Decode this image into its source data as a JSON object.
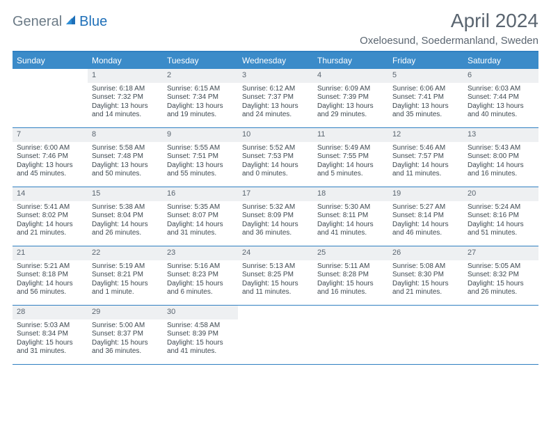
{
  "brand": {
    "part1": "General",
    "part2": "Blue"
  },
  "title": "April 2024",
  "location": "Oxeloesund, Soedermanland, Sweden",
  "colors": {
    "header_bg": "#3b8bc9",
    "border": "#2f7fc1",
    "daynum_bg": "#eef0f2",
    "text": "#5a6570"
  },
  "days_of_week": [
    "Sunday",
    "Monday",
    "Tuesday",
    "Wednesday",
    "Thursday",
    "Friday",
    "Saturday"
  ],
  "weeks": [
    [
      {
        "n": "",
        "sr": "",
        "ss": "",
        "dl": ""
      },
      {
        "n": "1",
        "sr": "Sunrise: 6:18 AM",
        "ss": "Sunset: 7:32 PM",
        "dl": "Daylight: 13 hours and 14 minutes."
      },
      {
        "n": "2",
        "sr": "Sunrise: 6:15 AM",
        "ss": "Sunset: 7:34 PM",
        "dl": "Daylight: 13 hours and 19 minutes."
      },
      {
        "n": "3",
        "sr": "Sunrise: 6:12 AM",
        "ss": "Sunset: 7:37 PM",
        "dl": "Daylight: 13 hours and 24 minutes."
      },
      {
        "n": "4",
        "sr": "Sunrise: 6:09 AM",
        "ss": "Sunset: 7:39 PM",
        "dl": "Daylight: 13 hours and 29 minutes."
      },
      {
        "n": "5",
        "sr": "Sunrise: 6:06 AM",
        "ss": "Sunset: 7:41 PM",
        "dl": "Daylight: 13 hours and 35 minutes."
      },
      {
        "n": "6",
        "sr": "Sunrise: 6:03 AM",
        "ss": "Sunset: 7:44 PM",
        "dl": "Daylight: 13 hours and 40 minutes."
      }
    ],
    [
      {
        "n": "7",
        "sr": "Sunrise: 6:00 AM",
        "ss": "Sunset: 7:46 PM",
        "dl": "Daylight: 13 hours and 45 minutes."
      },
      {
        "n": "8",
        "sr": "Sunrise: 5:58 AM",
        "ss": "Sunset: 7:48 PM",
        "dl": "Daylight: 13 hours and 50 minutes."
      },
      {
        "n": "9",
        "sr": "Sunrise: 5:55 AM",
        "ss": "Sunset: 7:51 PM",
        "dl": "Daylight: 13 hours and 55 minutes."
      },
      {
        "n": "10",
        "sr": "Sunrise: 5:52 AM",
        "ss": "Sunset: 7:53 PM",
        "dl": "Daylight: 14 hours and 0 minutes."
      },
      {
        "n": "11",
        "sr": "Sunrise: 5:49 AM",
        "ss": "Sunset: 7:55 PM",
        "dl": "Daylight: 14 hours and 5 minutes."
      },
      {
        "n": "12",
        "sr": "Sunrise: 5:46 AM",
        "ss": "Sunset: 7:57 PM",
        "dl": "Daylight: 14 hours and 11 minutes."
      },
      {
        "n": "13",
        "sr": "Sunrise: 5:43 AM",
        "ss": "Sunset: 8:00 PM",
        "dl": "Daylight: 14 hours and 16 minutes."
      }
    ],
    [
      {
        "n": "14",
        "sr": "Sunrise: 5:41 AM",
        "ss": "Sunset: 8:02 PM",
        "dl": "Daylight: 14 hours and 21 minutes."
      },
      {
        "n": "15",
        "sr": "Sunrise: 5:38 AM",
        "ss": "Sunset: 8:04 PM",
        "dl": "Daylight: 14 hours and 26 minutes."
      },
      {
        "n": "16",
        "sr": "Sunrise: 5:35 AM",
        "ss": "Sunset: 8:07 PM",
        "dl": "Daylight: 14 hours and 31 minutes."
      },
      {
        "n": "17",
        "sr": "Sunrise: 5:32 AM",
        "ss": "Sunset: 8:09 PM",
        "dl": "Daylight: 14 hours and 36 minutes."
      },
      {
        "n": "18",
        "sr": "Sunrise: 5:30 AM",
        "ss": "Sunset: 8:11 PM",
        "dl": "Daylight: 14 hours and 41 minutes."
      },
      {
        "n": "19",
        "sr": "Sunrise: 5:27 AM",
        "ss": "Sunset: 8:14 PM",
        "dl": "Daylight: 14 hours and 46 minutes."
      },
      {
        "n": "20",
        "sr": "Sunrise: 5:24 AM",
        "ss": "Sunset: 8:16 PM",
        "dl": "Daylight: 14 hours and 51 minutes."
      }
    ],
    [
      {
        "n": "21",
        "sr": "Sunrise: 5:21 AM",
        "ss": "Sunset: 8:18 PM",
        "dl": "Daylight: 14 hours and 56 minutes."
      },
      {
        "n": "22",
        "sr": "Sunrise: 5:19 AM",
        "ss": "Sunset: 8:21 PM",
        "dl": "Daylight: 15 hours and 1 minute."
      },
      {
        "n": "23",
        "sr": "Sunrise: 5:16 AM",
        "ss": "Sunset: 8:23 PM",
        "dl": "Daylight: 15 hours and 6 minutes."
      },
      {
        "n": "24",
        "sr": "Sunrise: 5:13 AM",
        "ss": "Sunset: 8:25 PM",
        "dl": "Daylight: 15 hours and 11 minutes."
      },
      {
        "n": "25",
        "sr": "Sunrise: 5:11 AM",
        "ss": "Sunset: 8:28 PM",
        "dl": "Daylight: 15 hours and 16 minutes."
      },
      {
        "n": "26",
        "sr": "Sunrise: 5:08 AM",
        "ss": "Sunset: 8:30 PM",
        "dl": "Daylight: 15 hours and 21 minutes."
      },
      {
        "n": "27",
        "sr": "Sunrise: 5:05 AM",
        "ss": "Sunset: 8:32 PM",
        "dl": "Daylight: 15 hours and 26 minutes."
      }
    ],
    [
      {
        "n": "28",
        "sr": "Sunrise: 5:03 AM",
        "ss": "Sunset: 8:34 PM",
        "dl": "Daylight: 15 hours and 31 minutes."
      },
      {
        "n": "29",
        "sr": "Sunrise: 5:00 AM",
        "ss": "Sunset: 8:37 PM",
        "dl": "Daylight: 15 hours and 36 minutes."
      },
      {
        "n": "30",
        "sr": "Sunrise: 4:58 AM",
        "ss": "Sunset: 8:39 PM",
        "dl": "Daylight: 15 hours and 41 minutes."
      },
      {
        "n": "",
        "sr": "",
        "ss": "",
        "dl": ""
      },
      {
        "n": "",
        "sr": "",
        "ss": "",
        "dl": ""
      },
      {
        "n": "",
        "sr": "",
        "ss": "",
        "dl": ""
      },
      {
        "n": "",
        "sr": "",
        "ss": "",
        "dl": ""
      }
    ]
  ]
}
